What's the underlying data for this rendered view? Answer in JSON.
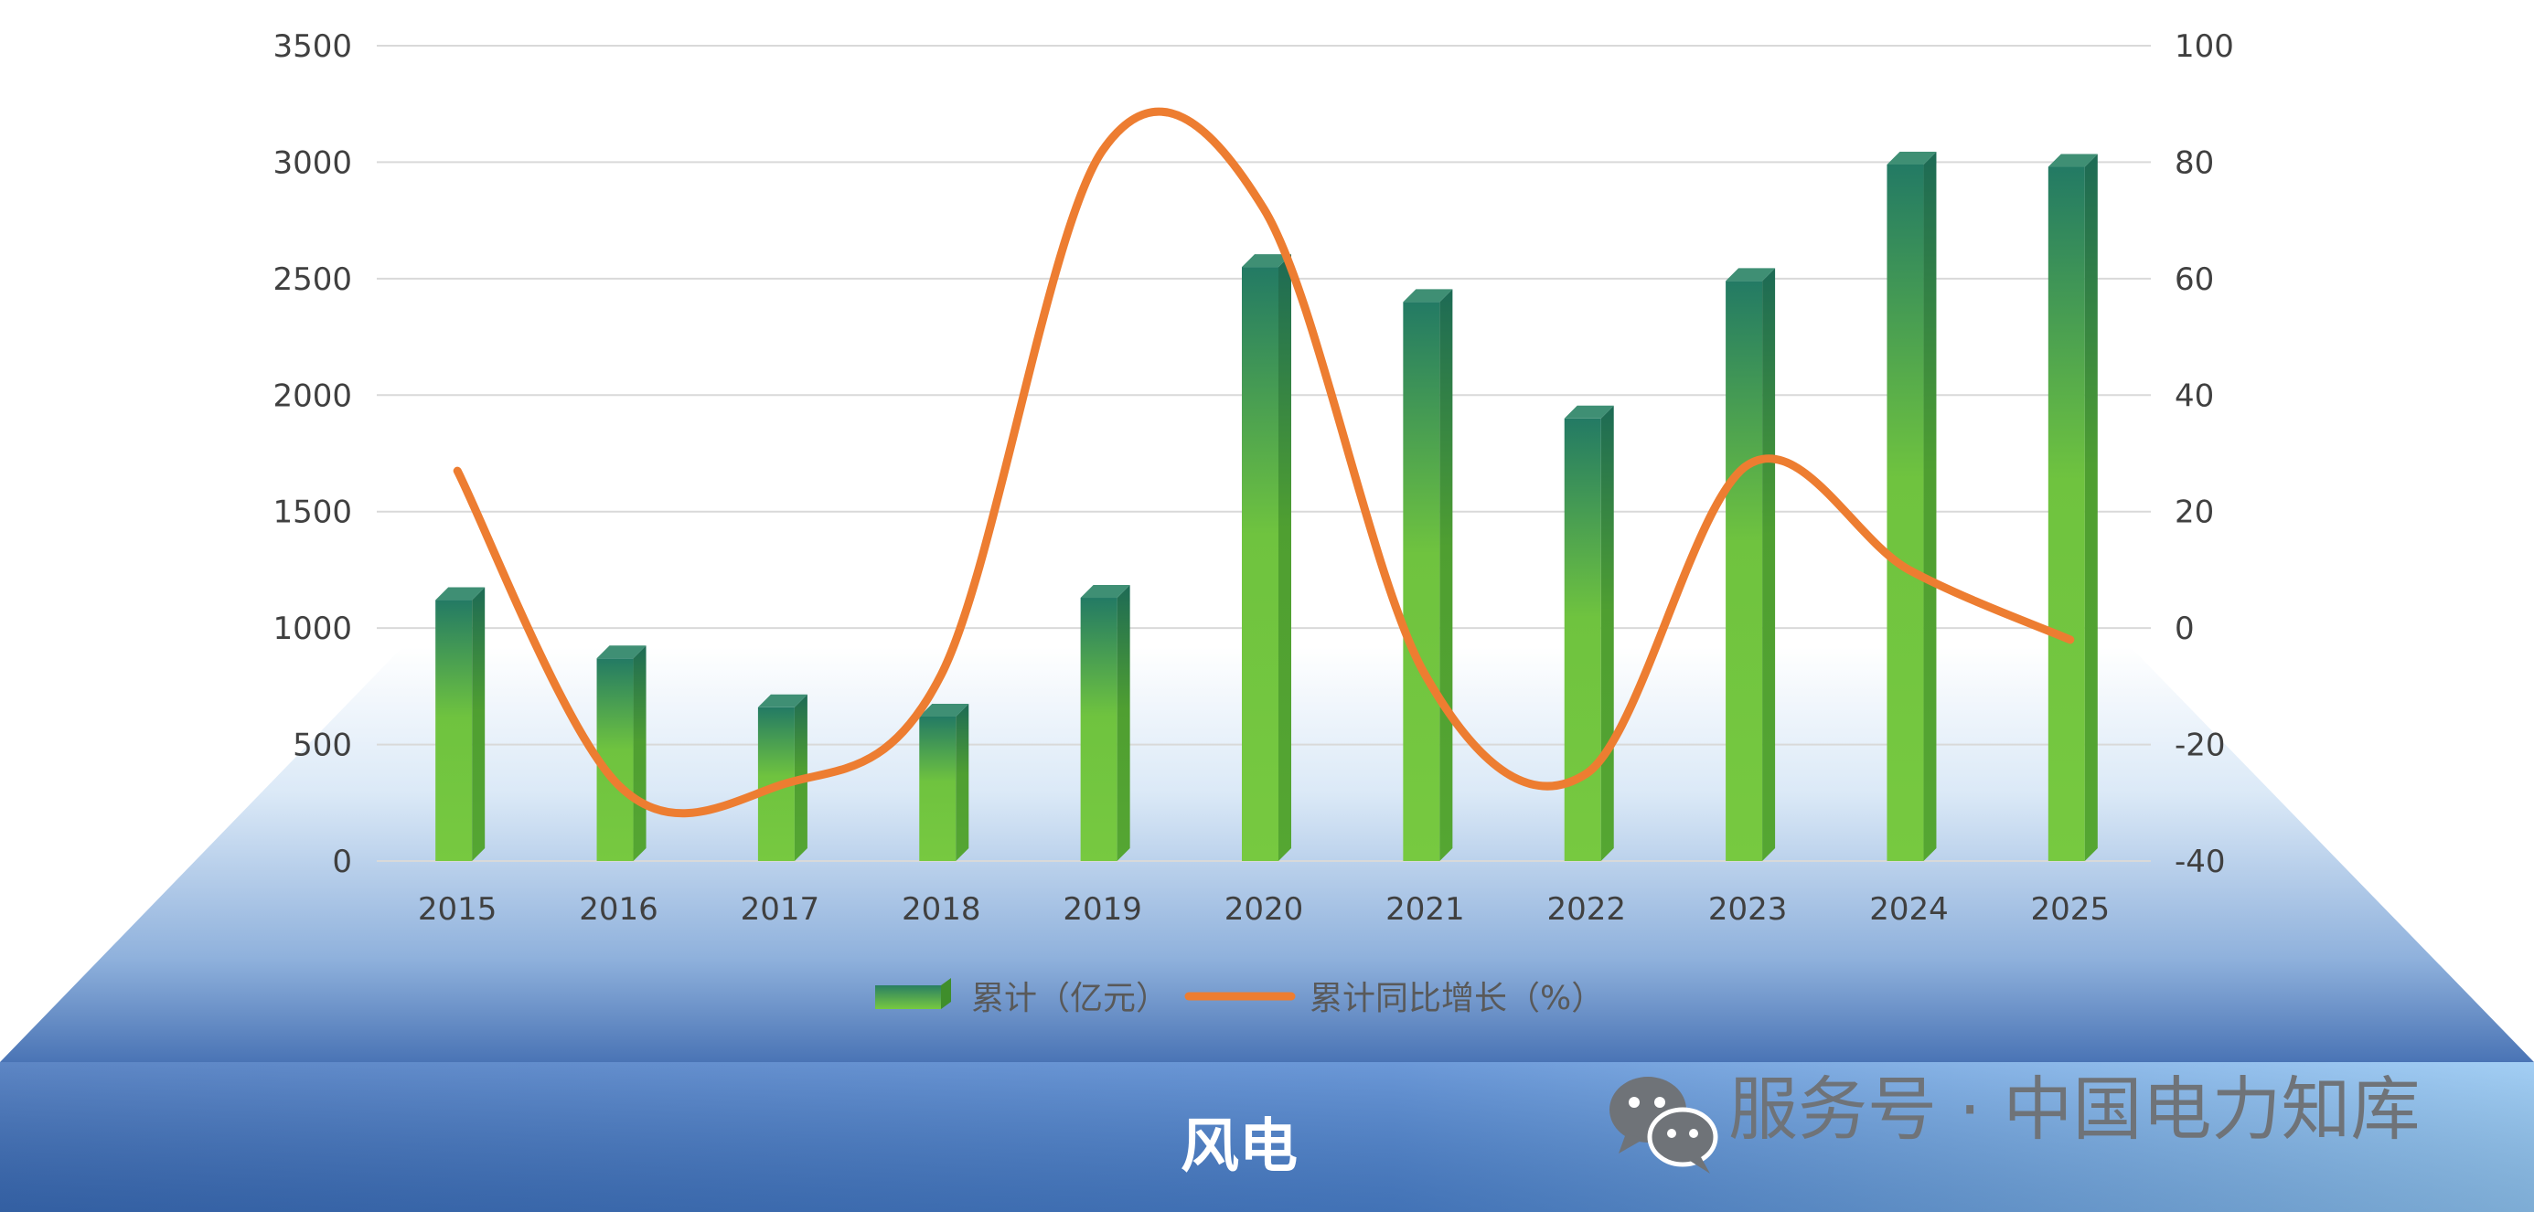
{
  "chart_data": {
    "type": "bar",
    "categories": [
      "2015",
      "2016",
      "2017",
      "2018",
      "2019",
      "2020",
      "2021",
      "2022",
      "2023",
      "2024",
      "2025"
    ],
    "series": [
      {
        "name": "累计（亿元）",
        "type": "bar",
        "axis": "left",
        "values": [
          1120,
          870,
          660,
          620,
          1130,
          2550,
          2400,
          1900,
          2490,
          2990,
          2980
        ]
      },
      {
        "name": "累计同比增长（%）",
        "type": "line",
        "axis": "right",
        "values": [
          27,
          -27,
          -27,
          -8,
          82,
          72,
          -8,
          -25,
          28,
          10,
          -2
        ]
      }
    ],
    "ylim_left": [
      0,
      3500
    ],
    "yticks_left": [
      0,
      500,
      1000,
      1500,
      2000,
      2500,
      3000,
      3500
    ],
    "ylim_right": [
      -40,
      100
    ],
    "yticks_right": [
      -40,
      -20,
      0,
      20,
      40,
      60,
      80,
      100
    ],
    "grid": true,
    "legend_position": "bottom",
    "colors": {
      "bar_top": "#2a7f62",
      "bar_mid": "#6dbf3f",
      "bar_side": "#4e9a2f",
      "line": "#ed7d31",
      "grid": "#d9d9d9"
    }
  },
  "banner": {
    "title": "风电"
  },
  "watermark": {
    "icon": "wechat-icon",
    "text": "服务号 · 中国电力知库"
  }
}
